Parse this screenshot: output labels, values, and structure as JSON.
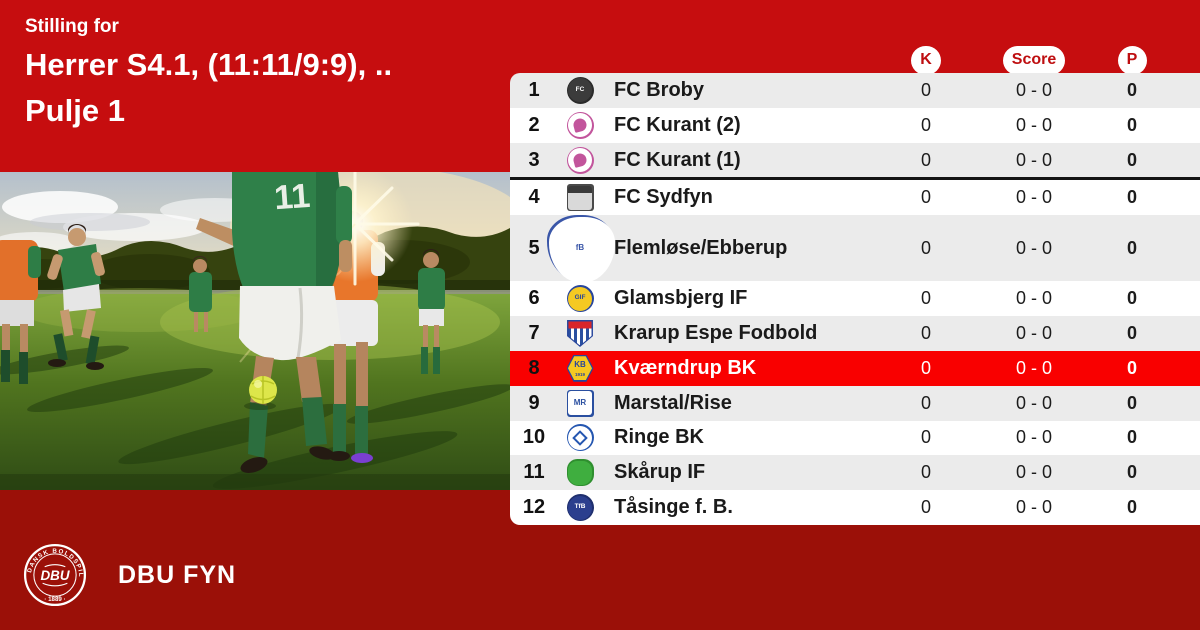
{
  "page": {
    "bg_top_red": "#c60d0f",
    "bg_bottom_red": "#9b1008",
    "highlight_red": "#f90000",
    "row_gray": "#ebebeb",
    "row_white": "#ffffff",
    "badge_text_red": "#be0e10"
  },
  "header": {
    "eyebrow": "Stilling for",
    "title_line1": "Herrer S4.1, (11:11/9:9), ..",
    "title_line2": "Pulje 1"
  },
  "photo": {
    "description": "amateur-football-match-photo",
    "jersey_number": "11"
  },
  "table": {
    "columns": [
      {
        "key": "k",
        "label": "K"
      },
      {
        "key": "score",
        "label": "Score"
      },
      {
        "key": "p",
        "label": "P"
      }
    ],
    "divider_after_rank": "3",
    "highlighted_rank": "8",
    "rows": [
      {
        "rank": "1",
        "team": "FC Broby",
        "k": "0",
        "score": "0 - 0",
        "p": "0",
        "logo": {
          "shape": "circle",
          "bg": "#3b3b3b",
          "border": "#2a2a2a",
          "fg": "#ffffff",
          "label": "FC",
          "label_size": "small"
        }
      },
      {
        "rank": "2",
        "team": "FC Kurant (2)",
        "k": "0",
        "score": "0 - 0",
        "p": "0",
        "logo": {
          "shape": "circle",
          "bg": "#ffffff",
          "border": "#c2559c",
          "fg": "#c2559c",
          "dot": "#c2559c"
        }
      },
      {
        "rank": "3",
        "team": "FC Kurant (1)",
        "k": "0",
        "score": "0 - 0",
        "p": "0",
        "logo": {
          "shape": "circle",
          "bg": "#ffffff",
          "border": "#c2559c",
          "fg": "#c2559c",
          "dot": "#c2559c"
        }
      },
      {
        "rank": "4",
        "team": "FC Sydfyn",
        "k": "0",
        "score": "0 - 0",
        "p": "0",
        "logo": {
          "shape": "square",
          "bg": "#d9d9d9",
          "border": "#4a4a4a",
          "fg": "#ffffff",
          "band": "#3a3a3a"
        }
      },
      {
        "rank": "5",
        "team": "Flemløse/Ebberup",
        "k": "0",
        "score": "0 - 0",
        "p": "0",
        "logo": {
          "shape": "crest",
          "bg": "#ffffff",
          "border": "#3a56a8",
          "fg": "#3a56a8",
          "label": "fB"
        }
      },
      {
        "rank": "6",
        "team": "Glamsbjerg IF",
        "k": "0",
        "score": "0 - 0",
        "p": "0",
        "logo": {
          "shape": "circle",
          "bg": "#f5c922",
          "border": "#27459c",
          "fg": "#27459c",
          "label": "GIF",
          "label_size": "small"
        }
      },
      {
        "rank": "7",
        "team": "Krarup Espe Fodbold",
        "k": "0",
        "score": "0 - 0",
        "p": "0",
        "logo": {
          "shape": "shield",
          "bg": "#ffffff",
          "border": "#27459c",
          "fg": "#ffffff",
          "band": "#d8252a",
          "stripes": "#2a4fa0"
        }
      },
      {
        "rank": "8",
        "team": "Kværndrup BK",
        "k": "0",
        "score": "0 - 0",
        "p": "0",
        "logo": {
          "shape": "hexagon",
          "bg": "#f5c922",
          "border": "#27459c",
          "fg": "#27459c",
          "label": "KB",
          "sub": "1919"
        }
      },
      {
        "rank": "9",
        "team": "Marstal/Rise",
        "k": "0",
        "score": "0 - 0",
        "p": "0",
        "logo": {
          "shape": "square",
          "bg": "#ffffff",
          "border": "#2a4fa0",
          "fg": "#2a4fa0",
          "label": "MR"
        }
      },
      {
        "rank": "10",
        "team": "Ringe BK",
        "k": "0",
        "score": "0 - 0",
        "p": "0",
        "logo": {
          "shape": "circle",
          "bg": "#ffffff",
          "border": "#2456b0",
          "fg": "#2456b0",
          "diamond": "#2456b0"
        }
      },
      {
        "rank": "11",
        "team": "Skårup IF",
        "k": "0",
        "score": "0 - 0",
        "p": "0",
        "logo": {
          "shape": "apple",
          "bg": "#3fae3f",
          "border": "#2f8f2f",
          "fg": "#ffffff"
        }
      },
      {
        "rank": "12",
        "team": "Tåsinge  f. B.",
        "k": "0",
        "score": "0 - 0",
        "p": "0",
        "logo": {
          "shape": "circle",
          "bg": "#2b3f8e",
          "border": "#1f2f6e",
          "fg": "#ffffff",
          "label": "TfB",
          "label_size": "small"
        }
      }
    ]
  },
  "footer": {
    "brand": "DBU FYN",
    "crest_ring_text": "DANSK BOLDSPIL-UNION",
    "crest_abbr": "DBU",
    "crest_year": "· 1889 ·"
  }
}
